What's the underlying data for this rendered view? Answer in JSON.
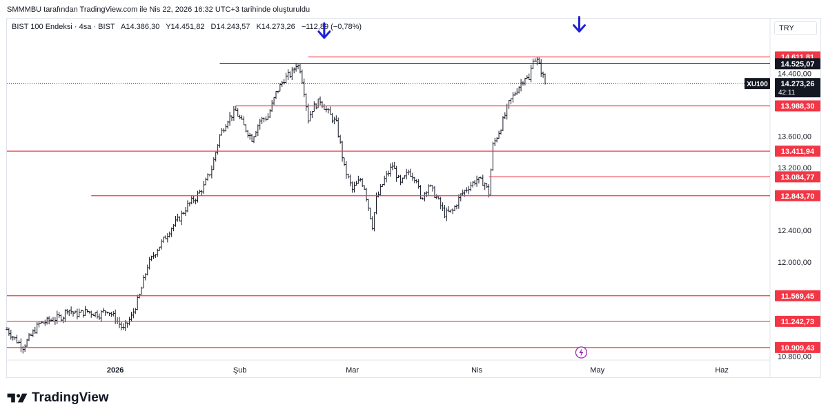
{
  "header": {
    "snapshot_text": "SMMMBU tarafından TradingView.com ile Nis 22, 2026 16:32 UTC+3 tarihinde oluşturuldu"
  },
  "legend": {
    "symbol": "BIST 100 Endeksi · 4sa · BIST",
    "open": "A14.386,30",
    "high": "Y14.451,82",
    "low": "D14.243,57",
    "close": "K14.273,26",
    "change": "−112,89 (−0,78%)"
  },
  "currency": "TRY",
  "brand": {
    "name": "TradingView"
  },
  "colors": {
    "candle": "#131722",
    "support_line": "#f23645",
    "resistance_line": "#131722",
    "arrow": "#1e22d6",
    "lightning": "#9c27b0"
  },
  "chart_data": {
    "type": "candlestick",
    "symbol_tag": "XU100",
    "last_price_label": "14.273,26",
    "countdown": "42:11",
    "last_price": 14273.26,
    "ylim": [
      10750,
      15100
    ],
    "y_ticks": [
      {
        "value": 10800,
        "label": "10.800,00"
      },
      {
        "value": 12000,
        "label": "12.000,00"
      },
      {
        "value": 12400,
        "label": "12.400,00"
      },
      {
        "value": 13200,
        "label": "13.200,00"
      },
      {
        "value": 13600,
        "label": "13.600,00"
      },
      {
        "value": 14400,
        "label": "14.400,00"
      }
    ],
    "x_ticks": [
      "2026",
      "Şub",
      "Mar",
      "Nis",
      "May",
      "Haz"
    ],
    "x_tick_days": [
      13,
      44,
      72,
      103,
      133,
      164
    ],
    "x_range_days": [
      -14,
      176
    ],
    "levels": [
      {
        "value": 14611.81,
        "label": "14.611,81",
        "kind": "support",
        "from_day": 61
      },
      {
        "value": 14525.07,
        "label": "14.525,07",
        "kind": "resistance",
        "from_day": 39
      },
      {
        "value": 13988.3,
        "label": "13.988,30",
        "kind": "support",
        "from_day": 43
      },
      {
        "value": 13411.94,
        "label": "13.411,94",
        "kind": "support",
        "from_day": -14
      },
      {
        "value": 13084.77,
        "label": "13.084,77",
        "kind": "support",
        "from_day": 106
      },
      {
        "value": 12843.7,
        "label": "12.843,70",
        "kind": "support",
        "from_day": 7
      },
      {
        "value": 11569.45,
        "label": "11.569,45",
        "kind": "support",
        "from_day": -14
      },
      {
        "value": 11242.73,
        "label": "11.242,73",
        "kind": "support",
        "from_day": -14
      },
      {
        "value": 10909.43,
        "label": "10.909,43",
        "kind": "support",
        "from_day": -14
      }
    ],
    "arrows": [
      {
        "day": 65,
        "value": 14900
      },
      {
        "day": 128.5,
        "value": 14980
      }
    ],
    "lightning_day": 129,
    "price_path": [
      [
        -14,
        11140
      ],
      [
        -12,
        11020
      ],
      [
        -10,
        10920
      ],
      [
        -8,
        11060
      ],
      [
        -6,
        11210
      ],
      [
        -3,
        11260
      ],
      [
        0,
        11310
      ],
      [
        1,
        11410
      ],
      [
        3,
        11330
      ],
      [
        6,
        11370
      ],
      [
        9,
        11330
      ],
      [
        11,
        11390
      ],
      [
        13,
        11280
      ],
      [
        15,
        11140
      ],
      [
        17,
        11300
      ],
      [
        19,
        11570
      ],
      [
        21,
        11950
      ],
      [
        23,
        12130
      ],
      [
        25,
        12280
      ],
      [
        27,
        12440
      ],
      [
        29,
        12560
      ],
      [
        31,
        12720
      ],
      [
        33,
        12820
      ],
      [
        35,
        12960
      ],
      [
        37,
        13190
      ],
      [
        39,
        13610
      ],
      [
        41,
        13820
      ],
      [
        43,
        13920
      ],
      [
        45,
        13730
      ],
      [
        47,
        13570
      ],
      [
        49,
        13800
      ],
      [
        51,
        13850
      ],
      [
        53,
        14150
      ],
      [
        55,
        14330
      ],
      [
        57,
        14410
      ],
      [
        58,
        14520
      ],
      [
        59,
        14460
      ],
      [
        60,
        14180
      ],
      [
        61,
        13820
      ],
      [
        62,
        13950
      ],
      [
        64,
        14060
      ],
      [
        66,
        13900
      ],
      [
        68,
        13760
      ],
      [
        69,
        13500
      ],
      [
        70,
        13200
      ],
      [
        72,
        12920
      ],
      [
        74,
        13050
      ],
      [
        75,
        12950
      ],
      [
        76,
        12700
      ],
      [
        77,
        12460
      ],
      [
        78,
        12800
      ],
      [
        80,
        13050
      ],
      [
        82,
        13230
      ],
      [
        84,
        12990
      ],
      [
        86,
        13150
      ],
      [
        88,
        13060
      ],
      [
        89,
        12790
      ],
      [
        91,
        12980
      ],
      [
        93,
        12820
      ],
      [
        95,
        12610
      ],
      [
        97,
        12650
      ],
      [
        99,
        12850
      ],
      [
        101,
        12960
      ],
      [
        103,
        13050
      ],
      [
        105,
        13000
      ],
      [
        106,
        12870
      ],
      [
        107,
        13480
      ],
      [
        109,
        13720
      ],
      [
        111,
        14020
      ],
      [
        113,
        14200
      ],
      [
        115,
        14360
      ],
      [
        116,
        14310
      ],
      [
        117,
        14600
      ],
      [
        118,
        14560
      ],
      [
        119,
        14440
      ],
      [
        120,
        14280
      ]
    ]
  }
}
